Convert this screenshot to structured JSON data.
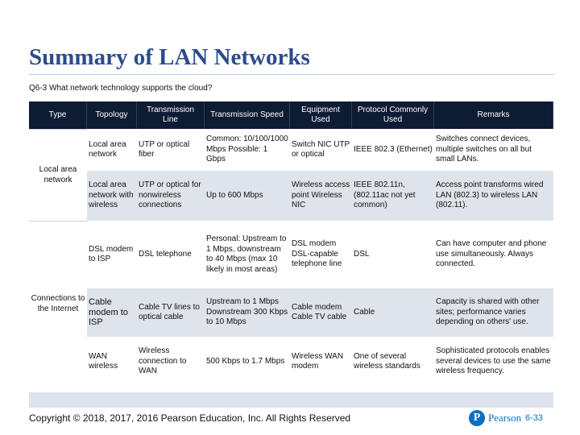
{
  "slide": {
    "title": "Summary of LAN Networks",
    "question": "Q6-3 What network technology supports the cloud?",
    "copyright": "Copyright © 2018, 2017, 2016 Pearson Education, Inc. All Rights Reserved",
    "logo_text": "Pearson",
    "logo_mark": "P",
    "page_number": "6-33"
  },
  "table": {
    "headers": [
      "Type",
      "Topology",
      "Transmission Line",
      "Transmission Speed",
      "Equipment Used",
      "Protocol Commonly Used",
      "Remarks"
    ],
    "groups": [
      {
        "type": "Local area network",
        "rows": [
          {
            "topology": "Local area network",
            "line": "UTP or optical fiber",
            "speed": "Common: 10/100/1000 Mbps Possible: 1 Gbps",
            "equipment": "Switch NIC UTP or optical",
            "protocol": "IEEE 802.3 (Ethernet)",
            "remarks": "Switches connect devices, multiple switches on all but small LANs."
          },
          {
            "topology": "Local area network with wireless",
            "line": "UTP or optical for nonwireless connections",
            "speed": "Up to 600 Mbps",
            "equipment": "Wireless access point Wireless NIC",
            "protocol": "IEEE 802.11n, (802.11ac not yet common)",
            "remarks": "Access point transforms wired LAN (802.3) to wireless LAN (802.11)."
          }
        ]
      },
      {
        "type": "Connections to the Internet",
        "rows": [
          {
            "topology": "DSL modem to ISP",
            "line": "DSL telephone",
            "speed": "Personal: Upstream to 1 Mbps, downstream to 40 Mbps (max 10 likely in most areas)",
            "equipment": "DSL modem DSL-capable telephone line",
            "protocol": "DSL",
            "remarks": "Can have computer and phone use simultaneously. Always connected."
          },
          {
            "topology": "Cable modem to ISP",
            "line": "Cable TV lines to optical cable",
            "speed": "Upstream to 1 Mbps Downstream 300 Kbps to 10 Mbps",
            "equipment": "Cable modem Cable TV cable",
            "protocol": "Cable",
            "remarks": "Capacity is shared with other sites; performance varies depending on others' use."
          },
          {
            "topology": "WAN wireless",
            "line": "Wireless connection to WAN",
            "speed": "500 Kbps to 1.7 Mbps",
            "equipment": "Wireless WAN modem",
            "protocol": "One of several wireless standards",
            "remarks": "Sophisticated protocols enables several devices to use the same wireless frequency."
          }
        ]
      }
    ]
  }
}
